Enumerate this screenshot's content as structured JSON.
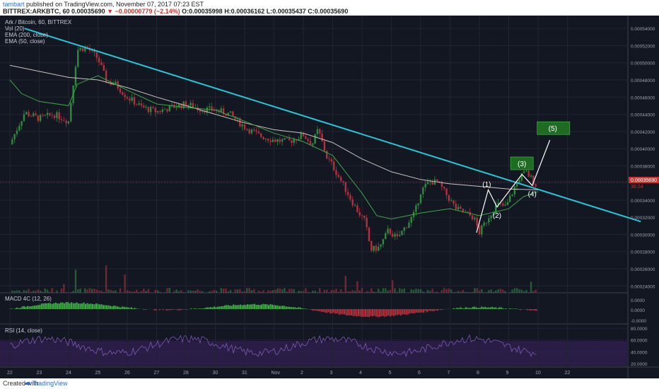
{
  "header": {
    "user": "tambart",
    "published": "published on TradingView.com, November 07, 2017 07:23 EST",
    "symbol": "BITTREX:ARKBTC, 60",
    "price": "0.00035690",
    "change": "−0.00000779 (−2.14%)",
    "ohlc": "O:0.00035998 H:0.00036162 L:0.00035437 C:0.00035690"
  },
  "legend": {
    "pair": "Ark / Bitcoin, 60, BITTREX",
    "vol": "Vol (20)",
    "ema200": "EMA (200, close)",
    "ema50": "EMA (50, close)",
    "macd": "MACD 4C (12, 26)",
    "rsi": "RSI (14, close)"
  },
  "footer": {
    "created": "Created with",
    "brand": "TradingView"
  },
  "colors": {
    "background": "#131722",
    "trendline": "#26c6da",
    "ema50": "#3aa842",
    "ema200": "#c9c3c0",
    "up": "#2f8a3e",
    "down": "#b5303a",
    "wave_box": "#1e6b22",
    "rsi_band": "#2a1d45",
    "price_tag": "#d0342c"
  },
  "chart_data": [
    {
      "type": "candlestick",
      "title": "Ark / Bitcoin, 60, BITTREX",
      "x_ticks": [
        "22",
        "23",
        "24",
        "25",
        "26",
        "27",
        "28",
        "30",
        "31",
        "Nov",
        "2",
        "3",
        "4",
        "5",
        "6",
        "7",
        "8",
        "9",
        "10",
        "22"
      ],
      "y_ticks": [
        "0.00054000",
        "0.00052000",
        "0.00050000",
        "0.00048000",
        "0.00046000",
        "0.00044000",
        "0.00042000",
        "0.00040000",
        "0.00038000",
        "0.00036000",
        "0.00034000",
        "0.00032000",
        "0.00030000",
        "0.00028000",
        "0.00026000",
        "0.00024000"
      ],
      "ylim": [
        0.000232,
        0.000555
      ],
      "last_price": "0.00035690",
      "countdown": "36:24",
      "price_path": [
        [
          0,
          0.000405
        ],
        [
          0.5,
          0.000442
        ],
        [
          1,
          0.000435
        ],
        [
          1.5,
          0.00044
        ],
        [
          2,
          0.000432
        ],
        [
          2.3,
          0.000515
        ],
        [
          2.6,
          0.000518
        ],
        [
          3,
          0.000505
        ],
        [
          3.3,
          0.000478
        ],
        [
          3.6,
          0.000475
        ],
        [
          4,
          0.00046
        ],
        [
          4.5,
          0.000448
        ],
        [
          5,
          0.000443
        ],
        [
          5.5,
          0.000448
        ],
        [
          6,
          0.000452
        ],
        [
          6.5,
          0.000446
        ],
        [
          7,
          0.000445
        ],
        [
          7.5,
          0.00044
        ],
        [
          8,
          0.000425
        ],
        [
          8.5,
          0.000415
        ],
        [
          9,
          0.00041
        ],
        [
          9.5,
          0.000408
        ],
        [
          10,
          0.000416
        ],
        [
          10.3,
          0.000405
        ],
        [
          10.5,
          0.000422
        ],
        [
          10.8,
          0.00039
        ],
        [
          11,
          0.00038
        ],
        [
          11.4,
          0.000355
        ],
        [
          11.8,
          0.00033
        ],
        [
          12.1,
          0.000315
        ],
        [
          12.3,
          0.000282
        ],
        [
          12.6,
          0.000285
        ],
        [
          12.9,
          0.000305
        ],
        [
          13.2,
          0.000295
        ],
        [
          13.5,
          0.00031
        ],
        [
          13.8,
          0.000325
        ],
        [
          14,
          0.00035
        ],
        [
          14.3,
          0.000362
        ],
        [
          14.6,
          0.00036
        ],
        [
          14.9,
          0.000345
        ],
        [
          15.2,
          0.00033
        ],
        [
          15.5,
          0.000325
        ],
        [
          15.8,
          0.00032
        ],
        [
          16,
          0.000302
        ],
        [
          16.3,
          0.00032
        ],
        [
          16.6,
          0.000335
        ],
        [
          16.9,
          0.000332
        ],
        [
          17.2,
          0.000355
        ],
        [
          17.4,
          0.000368
        ],
        [
          17.6,
          0.000372
        ],
        [
          17.8,
          0.000364
        ],
        [
          17.95,
          0.000357
        ]
      ],
      "ema200": [
        [
          0,
          0.000497
        ],
        [
          1,
          0.00049
        ],
        [
          2,
          0.000483
        ],
        [
          3,
          0.00048
        ],
        [
          4,
          0.000471
        ],
        [
          5,
          0.00046
        ],
        [
          6,
          0.00045
        ],
        [
          7,
          0.00044
        ],
        [
          8,
          0.00043
        ],
        [
          9,
          0.000422
        ],
        [
          10,
          0.000418
        ],
        [
          11,
          0.000407
        ],
        [
          12,
          0.000388
        ],
        [
          13,
          0.000373
        ],
        [
          14,
          0.000364
        ],
        [
          15,
          0.000359
        ],
        [
          16,
          0.000356
        ],
        [
          17,
          0.000353
        ],
        [
          18,
          0.000352
        ]
      ],
      "ema50": [
        [
          0,
          0.00048
        ],
        [
          0.4,
          0.000464
        ],
        [
          1,
          0.000455
        ],
        [
          2,
          0.00045
        ],
        [
          2.3,
          0.000475
        ],
        [
          3,
          0.000485
        ],
        [
          4,
          0.000468
        ],
        [
          5,
          0.000452
        ],
        [
          6,
          0.000448
        ],
        [
          7,
          0.000445
        ],
        [
          8,
          0.000432
        ],
        [
          9,
          0.000418
        ],
        [
          10,
          0.000408
        ],
        [
          11,
          0.000392
        ],
        [
          12,
          0.000348
        ],
        [
          12.5,
          0.000322
        ],
        [
          13,
          0.000318
        ],
        [
          14,
          0.000325
        ],
        [
          15,
          0.00033
        ],
        [
          16,
          0.000322
        ],
        [
          17,
          0.00033
        ],
        [
          17.5,
          0.000344
        ],
        [
          18,
          0.00035
        ]
      ],
      "trendline": [
        [
          0.5,
          0.00054
        ],
        [
          21.5,
          0.000315
        ]
      ],
      "wave_labels": [
        {
          "label": "(1)",
          "x": 16.25,
          "y": 0.000358
        },
        {
          "label": "(2)",
          "x": 16.6,
          "y": 0.000322
        },
        {
          "label": "(3)",
          "x": 17.45,
          "y": 0.000382
        },
        {
          "label": "(4)",
          "x": 17.8,
          "y": 0.000347
        },
        {
          "label": "(5)",
          "x": 18.5,
          "y": 0.000423
        }
      ],
      "wave_path": [
        [
          15.9,
          0.000302
        ],
        [
          16.3,
          0.000352
        ],
        [
          16.6,
          0.000332
        ],
        [
          17.45,
          0.00037
        ],
        [
          17.8,
          0.000357
        ],
        [
          18.4,
          0.00041
        ]
      ]
    },
    {
      "type": "bar",
      "title": "MACD 4C (12, 26)",
      "y_ticks": [
        "0.0000",
        "0.0000",
        "-0.0000"
      ]
    },
    {
      "type": "line",
      "title": "RSI (14, close)",
      "y_ticks": [
        "80.0000",
        "60.0000",
        "40.0000",
        "20.0000"
      ],
      "ylim": [
        15,
        85
      ]
    }
  ]
}
